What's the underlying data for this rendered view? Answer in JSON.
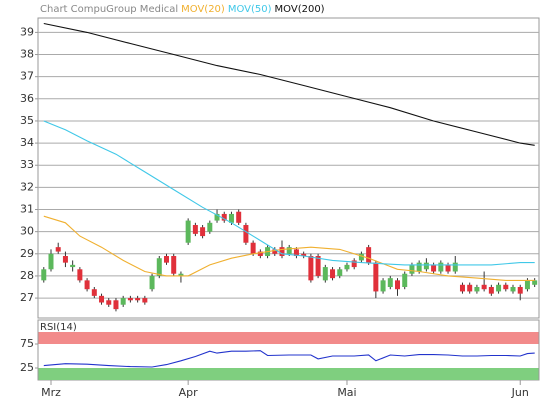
{
  "chart_data": [
    {
      "type": "candlestick",
      "title": "Chart CompuGroup Medical",
      "up_color": "#5cb85c",
      "down_color": "#e0303a",
      "grid": true,
      "ylim": [
        26.1,
        39.65
      ],
      "yticks": [
        27,
        28,
        29,
        30,
        31,
        32,
        33,
        34,
        35,
        36,
        37,
        38,
        39
      ],
      "xlim": [
        -0.8,
        68.6
      ],
      "xticks": [
        {
          "value": 1,
          "label": "Mrz"
        },
        {
          "value": 20,
          "label": "Apr"
        },
        {
          "value": 42,
          "label": "Mai"
        },
        {
          "value": 66,
          "label": "Jun"
        }
      ],
      "ohlc": [
        [
          27.8,
          28.4,
          27.7,
          28.3
        ],
        [
          28.3,
          29.2,
          28.2,
          29.0
        ],
        [
          29.3,
          29.5,
          29.0,
          29.1
        ],
        [
          28.9,
          29.1,
          28.4,
          28.6
        ],
        [
          28.4,
          28.7,
          28.2,
          28.5
        ],
        [
          28.3,
          28.4,
          27.7,
          27.8
        ],
        [
          27.8,
          27.9,
          27.3,
          27.4
        ],
        [
          27.4,
          27.5,
          27.0,
          27.1
        ],
        [
          27.1,
          27.2,
          26.7,
          26.8
        ],
        [
          26.9,
          27.0,
          26.6,
          26.7
        ],
        [
          26.9,
          27.0,
          26.4,
          26.5
        ],
        [
          26.7,
          27.1,
          26.6,
          27.0
        ],
        [
          27.0,
          27.1,
          26.8,
          26.9
        ],
        [
          27.0,
          27.1,
          26.8,
          26.9
        ],
        [
          27.0,
          27.1,
          26.7,
          26.8
        ],
        [
          27.4,
          28.1,
          27.3,
          28.0
        ],
        [
          28.0,
          28.9,
          27.9,
          28.8
        ],
        [
          28.9,
          29.0,
          28.5,
          28.6
        ],
        [
          28.9,
          29.0,
          28.0,
          28.1
        ],
        [
          28.0,
          28.2,
          27.7,
          28.1
        ],
        [
          29.5,
          30.6,
          29.4,
          30.5
        ],
        [
          30.3,
          30.4,
          29.8,
          29.9
        ],
        [
          30.2,
          30.3,
          29.7,
          29.8
        ],
        [
          30.0,
          30.5,
          29.9,
          30.4
        ],
        [
          30.5,
          31.0,
          30.4,
          30.8
        ],
        [
          30.8,
          30.9,
          30.4,
          30.5
        ],
        [
          30.4,
          30.9,
          30.3,
          30.8
        ],
        [
          30.9,
          31.0,
          30.3,
          30.4
        ],
        [
          30.3,
          30.4,
          29.4,
          29.5
        ],
        [
          29.5,
          29.6,
          28.9,
          29.0
        ],
        [
          29.1,
          29.2,
          28.8,
          28.9
        ],
        [
          28.9,
          29.4,
          28.8,
          29.3
        ],
        [
          29.2,
          29.3,
          28.9,
          29.0
        ],
        [
          29.3,
          29.6,
          28.8,
          28.9
        ],
        [
          29.0,
          29.4,
          28.9,
          29.3
        ],
        [
          29.2,
          29.3,
          28.8,
          28.9
        ],
        [
          29.0,
          29.1,
          28.8,
          28.9
        ],
        [
          28.9,
          29.0,
          27.7,
          27.8
        ],
        [
          28.9,
          29.0,
          27.9,
          28.0
        ],
        [
          27.8,
          28.5,
          27.7,
          28.4
        ],
        [
          28.3,
          28.4,
          27.8,
          27.9
        ],
        [
          28.0,
          28.4,
          27.9,
          28.3
        ],
        [
          28.3,
          28.6,
          28.2,
          28.5
        ],
        [
          28.7,
          28.8,
          28.3,
          28.4
        ],
        [
          28.7,
          29.1,
          28.6,
          29.0
        ],
        [
          29.3,
          29.4,
          28.5,
          28.6
        ],
        [
          28.6,
          28.7,
          27.0,
          27.3
        ],
        [
          27.3,
          27.9,
          27.2,
          27.8
        ],
        [
          27.5,
          28.0,
          27.4,
          27.9
        ],
        [
          27.8,
          27.9,
          27.1,
          27.4
        ],
        [
          27.5,
          28.2,
          27.4,
          28.1
        ],
        [
          28.1,
          28.6,
          28.0,
          28.5
        ],
        [
          28.2,
          28.7,
          28.1,
          28.6
        ],
        [
          28.3,
          28.8,
          28.2,
          28.6
        ],
        [
          28.5,
          28.6,
          28.1,
          28.2
        ],
        [
          28.2,
          28.7,
          28.1,
          28.6
        ],
        [
          28.5,
          28.6,
          28.1,
          28.2
        ],
        [
          28.2,
          28.9,
          28.1,
          28.6
        ],
        [
          27.6,
          27.7,
          27.2,
          27.3
        ],
        [
          27.6,
          27.7,
          27.2,
          27.3
        ],
        [
          27.3,
          27.6,
          27.2,
          27.5
        ],
        [
          27.6,
          28.2,
          27.3,
          27.4
        ],
        [
          27.5,
          27.6,
          27.1,
          27.2
        ],
        [
          27.3,
          27.7,
          27.2,
          27.6
        ],
        [
          27.6,
          27.7,
          27.3,
          27.4
        ],
        [
          27.3,
          27.6,
          27.2,
          27.5
        ],
        [
          27.5,
          27.6,
          26.9,
          27.2
        ],
        [
          27.4,
          27.9,
          27.3,
          27.8
        ],
        [
          27.6,
          27.9,
          27.5,
          27.8
        ]
      ],
      "series": [
        {
          "name": "MOV(20)",
          "color": "#f0b030",
          "x": [
            0,
            3,
            5,
            8,
            11,
            14,
            17,
            20,
            23,
            26,
            29,
            33,
            37,
            41,
            45,
            49,
            52,
            56,
            60,
            64,
            68
          ],
          "values": [
            30.7,
            30.4,
            29.8,
            29.3,
            28.7,
            28.2,
            28.0,
            28.0,
            28.5,
            28.8,
            29.0,
            29.2,
            29.3,
            29.2,
            28.8,
            28.3,
            28.2,
            28.0,
            27.9,
            27.8,
            27.8
          ]
        },
        {
          "name": "MOV(50)",
          "color": "#40c8e8",
          "x": [
            0,
            3,
            6,
            10,
            14,
            18,
            22,
            26,
            30,
            33,
            36,
            40,
            44,
            50,
            56,
            62,
            66,
            68
          ],
          "values": [
            35.0,
            34.6,
            34.1,
            33.5,
            32.7,
            31.9,
            31.1,
            30.4,
            29.6,
            29.0,
            28.9,
            28.7,
            28.6,
            28.5,
            28.5,
            28.5,
            28.6,
            28.6
          ]
        },
        {
          "name": "MOV(200)",
          "color": "#111111",
          "x": [
            0,
            6,
            12,
            18,
            24,
            30,
            36,
            42,
            48,
            54,
            60,
            66,
            68
          ],
          "values": [
            39.4,
            39.0,
            38.5,
            38.0,
            37.5,
            37.1,
            36.6,
            36.1,
            35.6,
            35.0,
            34.5,
            34.0,
            33.9
          ]
        }
      ]
    },
    {
      "type": "line",
      "title": "RSI(14)",
      "ylim": [
        0,
        125
      ],
      "yticks": [
        25,
        75
      ],
      "bands": [
        {
          "from": 75,
          "to": 100,
          "color": "#f28a8a"
        },
        {
          "from": 0,
          "to": 25,
          "color": "#7fcf7f"
        }
      ],
      "series": [
        {
          "color": "#2233cc",
          "x": [
            0,
            3,
            6,
            9,
            12,
            15,
            17,
            19,
            21,
            23,
            24,
            26,
            28,
            30,
            31,
            34,
            37,
            38,
            40,
            43,
            45,
            46,
            48,
            50,
            52,
            54,
            56,
            58,
            60,
            62,
            64,
            66,
            67,
            68
          ],
          "values": [
            30,
            34,
            33,
            30,
            28,
            27,
            32,
            40,
            49,
            60,
            56,
            60,
            60,
            61,
            51,
            52,
            52,
            44,
            50,
            50,
            52,
            40,
            52,
            50,
            53,
            53,
            52,
            50,
            50,
            51,
            51,
            50,
            55,
            56
          ]
        }
      ]
    }
  ]
}
